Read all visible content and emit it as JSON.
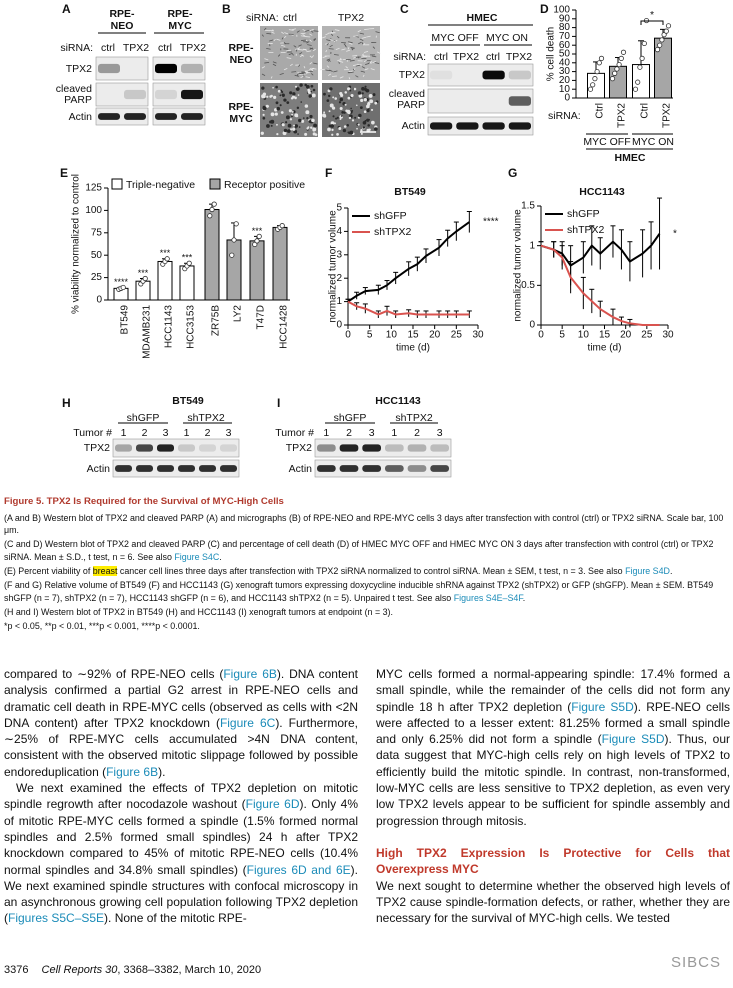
{
  "figure": {
    "A": {
      "label": "A",
      "columns": [
        [
          "RPE-",
          "NEO"
        ],
        [
          "RPE-",
          "MYC"
        ]
      ],
      "sirna": "siRNA:",
      "lanes": [
        "ctrl",
        "TPX2",
        "ctrl",
        "TPX2"
      ],
      "rows": [
        [
          "TPX2"
        ],
        [
          "cleaved",
          "PARP"
        ],
        [
          "Actin"
        ]
      ]
    },
    "B": {
      "label": "B",
      "sirna": "siRNA:",
      "columns": [
        "ctrl",
        "TPX2"
      ],
      "rows": [
        [
          "RPE-",
          "NEO"
        ],
        [
          "RPE-",
          "MYC"
        ]
      ]
    },
    "C": {
      "label": "C",
      "title": "HMEC",
      "groups": [
        "MYC OFF",
        "MYC ON"
      ],
      "sirna": "siRNA:",
      "lanes": [
        "ctrl",
        "TPX2",
        "ctrl",
        "TPX2"
      ],
      "rows": [
        [
          "TPX2"
        ],
        [
          "cleaved",
          "PARP"
        ],
        [
          "Actin"
        ]
      ]
    },
    "H": {
      "label": "H",
      "title": "BT549",
      "groups": [
        "shGFP",
        "shTPX2"
      ],
      "tumor_label": "Tumor #",
      "lanes": [
        "1",
        "2",
        "3",
        "1",
        "2",
        "3"
      ],
      "rows": [
        "TPX2",
        "Actin"
      ]
    },
    "I": {
      "label": "I",
      "title": "HCC1143",
      "groups": [
        "shGFP",
        "shTPX2"
      ],
      "tumor_label": "Tumor #",
      "lanes": [
        "1",
        "2",
        "3",
        "1",
        "2",
        "3"
      ],
      "rows": [
        "TPX2",
        "Actin"
      ]
    }
  },
  "chart_data": [
    {
      "panel": "D",
      "type": "bar",
      "ylabel": "% cell death",
      "categories": [
        "Ctrl",
        "TPX2",
        "Ctrl",
        "TPX2"
      ],
      "values": [
        28,
        36,
        38,
        68
      ],
      "errors": [
        13,
        10,
        27,
        10
      ],
      "points": [
        [
          10,
          15,
          22,
          30,
          40,
          45
        ],
        [
          22,
          28,
          33,
          38,
          45,
          52
        ],
        [
          10,
          18,
          35,
          45,
          62,
          88
        ],
        [
          55,
          60,
          66,
          72,
          76,
          82
        ]
      ],
      "colors": [
        "#ffffff",
        "#a6a6a6",
        "#ffffff",
        "#a6a6a6"
      ],
      "ylim": [
        0,
        100
      ],
      "yticks": [
        0,
        10,
        20,
        30,
        40,
        50,
        60,
        70,
        80,
        90,
        100
      ],
      "x_label": "siRNA:",
      "groups": [
        "MYC OFF",
        "MYC ON"
      ],
      "group_title": "HMEC",
      "significance": "*"
    },
    {
      "panel": "E",
      "type": "bar",
      "ylabel": "% viability normalized to control",
      "legend": [
        {
          "name": "Triple-negative",
          "color": "#ffffff"
        },
        {
          "name": "Receptor positive",
          "color": "#a6a6a6"
        }
      ],
      "categories": [
        "BT549",
        "MDAMB231",
        "HCC1143",
        "HCC3153",
        "ZR75B",
        "LY2",
        "T47D",
        "HCC1428"
      ],
      "values": [
        13,
        21,
        43,
        38,
        101,
        67,
        66,
        81
      ],
      "errors": [
        1,
        3,
        3,
        3,
        6,
        19,
        5,
        2
      ],
      "points": [
        [
          12,
          13,
          14
        ],
        [
          18,
          21,
          24
        ],
        [
          40,
          43,
          46
        ],
        [
          35,
          38,
          41
        ],
        [
          94,
          101,
          107
        ],
        [
          50,
          67,
          85
        ],
        [
          62,
          66,
          71
        ],
        [
          79,
          81,
          83
        ]
      ],
      "colors": [
        "#ffffff",
        "#ffffff",
        "#ffffff",
        "#ffffff",
        "#a6a6a6",
        "#a6a6a6",
        "#a6a6a6",
        "#a6a6a6"
      ],
      "annotations": [
        "****",
        "***",
        "***",
        "***",
        null,
        null,
        "***",
        null
      ],
      "ylim": [
        0,
        125
      ],
      "yticks": [
        0,
        25,
        50,
        75,
        100,
        125
      ]
    },
    {
      "panel": "F",
      "type": "line",
      "title": "BT549",
      "ylabel": "normalized tumor volume",
      "xlabel": "time (d)",
      "x": [
        0,
        2,
        4,
        7,
        9,
        11,
        14,
        16,
        18,
        21,
        23,
        25,
        28
      ],
      "series": [
        {
          "name": "shGFP",
          "color": "#000000",
          "values": [
            1,
            1.25,
            1.45,
            1.5,
            1.7,
            2.0,
            2.4,
            2.6,
            2.95,
            3.3,
            3.7,
            4.0,
            4.4
          ],
          "errors": [
            0.1,
            0.15,
            0.15,
            0.2,
            0.2,
            0.25,
            0.3,
            0.3,
            0.3,
            0.35,
            0.35,
            0.4,
            0.45
          ]
        },
        {
          "name": "shTPX2",
          "color": "#d9534f",
          "values": [
            1,
            0.8,
            0.7,
            0.45,
            0.6,
            0.45,
            0.5,
            0.45,
            0.45,
            0.45,
            0.45,
            0.45,
            0.45
          ],
          "errors": [
            0.1,
            0.15,
            0.2,
            0.15,
            0.2,
            0.15,
            0.15,
            0.15,
            0.15,
            0.15,
            0.15,
            0.15,
            0.15
          ]
        }
      ],
      "annotation": "****",
      "xlim": [
        0,
        30
      ],
      "ylim": [
        0,
        5
      ],
      "xticks": [
        0,
        5,
        10,
        15,
        20,
        25,
        30
      ],
      "yticks": [
        0,
        1,
        2,
        3,
        4,
        5
      ]
    },
    {
      "panel": "G",
      "type": "line",
      "title": "HCC1143",
      "ylabel": "normalized tumor volume",
      "xlabel": "time (d)",
      "x": [
        0,
        3,
        5,
        7,
        10,
        12,
        14,
        17,
        19,
        21,
        24,
        26,
        28
      ],
      "series": [
        {
          "name": "shGFP",
          "color": "#000000",
          "values": [
            1,
            0.95,
            0.9,
            0.75,
            0.85,
            1.0,
            0.9,
            1.05,
            0.95,
            0.8,
            0.9,
            1.0,
            1.15
          ],
          "errors": [
            0.05,
            0.1,
            0.15,
            0.25,
            0.2,
            0.25,
            0.2,
            0.2,
            0.25,
            0.25,
            0.3,
            0.3,
            0.45
          ]
        },
        {
          "name": "shTPX2",
          "color": "#d9534f",
          "values": [
            1,
            0.95,
            0.85,
            0.6,
            0.4,
            0.3,
            0.2,
            0.1,
            0.05,
            0.02,
            0,
            0,
            0
          ],
          "errors": [
            0.05,
            0.1,
            0.15,
            0.2,
            0.2,
            0.15,
            0.1,
            0.1,
            0.05,
            0.05,
            0,
            0,
            0
          ]
        }
      ],
      "annotation": "*",
      "xlim": [
        0,
        30
      ],
      "ylim": [
        0,
        1.5
      ],
      "xticks": [
        0,
        5,
        10,
        15,
        20,
        25,
        30
      ],
      "yticks": [
        0,
        0.5,
        1,
        1.5
      ]
    }
  ],
  "caption": {
    "title": "Figure 5. TPX2 Is Required for the Survival of MYC-High Cells",
    "paragraphs": [
      [
        "(A and B) Western blot of TPX2 and cleaved PARP (A) and micrographs (B) of RPE-NEO and RPE-MYC cells 3 days after transfection with control (ctrl) or TPX2 siRNA. Scale bar, 100 μm."
      ],
      [
        "(C and D) Western blot of TPX2 and cleaved PARP (C) and percentage of cell death (D) of HMEC MYC OFF and HMEC MYC ON 3 days after transfection with control (ctrl) or TPX2 siRNA. Mean ± S.D., t test, n = 6. See also ",
        {
          "link": "Figure S4C"
        },
        "."
      ],
      [
        "(E) Percent viability of ",
        {
          "highlight": "breast"
        },
        " cancer cell lines three days after transfection with TPX2 siRNA normalized to control siRNA. Mean ± SEM, t test, n = 3. See also ",
        {
          "link": "Figure S4D"
        },
        "."
      ],
      [
        "(F and G) Relative volume of BT549 (F) and HCC1143 (G) xenograft tumors expressing doxycycline inducible shRNA against TPX2 (shTPX2) or GFP (shGFP). Mean ± SEM. BT549 shGFP (n = 7), shTPX2 (n = 7), HCC1143 shGFP (n = 6), and HCC1143 shTPX2 (n = 5). Unpaired t test. See also ",
        {
          "link": "Figures S4E–S4F"
        },
        "."
      ],
      [
        "(H and I) Western blot of TPX2 in BT549 (H) and HCC1143 (I) xenograft tumors at endpoint (n = 3)."
      ],
      [
        "*p < 0.05, **p < 0.01, ***p < 0.001, ****p < 0.0001."
      ]
    ]
  },
  "body": {
    "left": [
      [
        "compared to ∼92% of RPE-NEO cells (",
        {
          "link": "Figure 6B"
        },
        "). DNA content analysis confirmed a partial G2 arrest in RPE-NEO cells and dramatic cell death in RPE-MYC cells (observed as cells with <2N DNA content) after TPX2 knockdown (",
        {
          "link": "Figure 6C"
        },
        "). Furthermore, ∼25% of RPE-MYC cells accumulated >4N DNA content, consistent with the observed mitotic slippage followed by possible endoreduplication (",
        {
          "link": "Figure 6B"
        },
        ")."
      ],
      [
        "We next examined the effects of TPX2 depletion on mitotic spindle regrowth after nocodazole washout (",
        {
          "link": "Figure 6D"
        },
        "). Only 4% of mitotic RPE-MYC cells formed a spindle (1.5% formed normal spindles and 2.5% formed small spindles) 24 h after TPX2 knockdown compared to 45% of mitotic RPE-NEO cells (10.4% normal spindles and 34.8% small spindles) (",
        {
          "link": "Figures 6D and 6E"
        },
        "). We next examined spindle structures with confocal microscopy in an asynchronous growing cell population following TPX2 depletion (",
        {
          "link": "Figures S5C–S5E"
        },
        "). None of the mitotic RPE-"
      ]
    ],
    "right": [
      [
        "MYC cells formed a normal-appearing spindle: 17.4% formed a small spindle, while the remainder of the cells did not form any spindle 18 h after TPX2 depletion (",
        {
          "link": "Figure S5D"
        },
        "). RPE-NEO cells were affected to a lesser extent: 81.25% formed a small spindle and only 6.25% did not form a spindle (",
        {
          "link": "Figure S5D"
        },
        "). Thus, our data suggest that MYC-high cells rely on high levels of TPX2 to efficiently build the mitotic spindle. In contrast, non-transformed, low-MYC cells are less sensitive to TPX2 depletion, as even very low TPX2 levels appear to be sufficient for spindle assembly and progression through mitosis."
      ]
    ],
    "heading": "High TPX2 Expression Is Protective for Cells that Overexpress MYC",
    "after_heading": [
      [
        "We next sought to determine whether the observed high levels of TPX2 cause spindle-formation defects, or rather, whether they are necessary for the survival of MYC-high cells. We tested"
      ]
    ]
  },
  "footer": {
    "page": "3376",
    "journal": "Cell Reports",
    "volume": "30",
    "citation": ", 3368–3382, March 10, 2020",
    "watermark": "SIBCS"
  }
}
